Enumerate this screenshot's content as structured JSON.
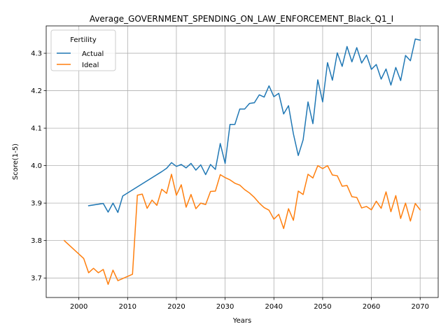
{
  "chart_data": {
    "type": "line",
    "title": "Average_GOVERNMENT_SPENDING_ON_LAW_ENFORCEMENT_Black_Q1_I",
    "xlabel": "Years",
    "ylabel": "Score(1-5)",
    "xlim": [
      1993.3,
      2073.7
    ],
    "ylim": [
      3.648,
      4.373
    ],
    "xticks": [
      2000,
      2010,
      2020,
      2030,
      2040,
      2050,
      2060,
      2070
    ],
    "yticks": [
      3.7,
      3.8,
      3.9,
      4.0,
      4.1,
      4.2,
      4.3
    ],
    "ytick_labels": [
      "3.7",
      "3.8",
      "3.9",
      "4.0",
      "4.1",
      "4.2",
      "4.3"
    ],
    "grid": true,
    "legend": {
      "title": "Fertility",
      "placement": "top-left"
    },
    "series": [
      {
        "name": "Actual",
        "color": "#1f77b4",
        "x": [
          2002,
          2005,
          2006,
          2007,
          2008,
          2009,
          2017,
          2018,
          2019,
          2020,
          2021,
          2022,
          2023,
          2024,
          2025,
          2026,
          2027,
          2028,
          2029,
          2030,
          2031,
          2032,
          2033,
          2034,
          2035,
          2036,
          2037,
          2038,
          2039,
          2040,
          2041,
          2042,
          2043,
          2044,
          2045,
          2046,
          2047,
          2048,
          2049,
          2050,
          2051,
          2052,
          2053,
          2054,
          2055,
          2056,
          2057,
          2058,
          2059,
          2060,
          2061,
          2062,
          2063,
          2064,
          2065,
          2066,
          2067,
          2068,
          2069,
          2070
        ],
        "values": [
          3.893,
          3.899,
          3.876,
          3.9,
          3.875,
          3.919,
          3.984,
          3.993,
          4.008,
          3.998,
          4.003,
          3.994,
          4.006,
          3.988,
          4.002,
          3.976,
          4.003,
          3.99,
          4.059,
          4.006,
          4.11,
          4.11,
          4.151,
          4.151,
          4.166,
          4.168,
          4.189,
          4.183,
          4.213,
          4.184,
          4.193,
          4.138,
          4.16,
          4.085,
          4.027,
          4.069,
          4.17,
          4.112,
          4.229,
          4.17,
          4.275,
          4.228,
          4.301,
          4.265,
          4.318,
          4.277,
          4.315,
          4.274,
          4.295,
          4.257,
          4.27,
          4.231,
          4.258,
          4.215,
          4.262,
          4.227,
          4.294,
          4.28,
          4.338,
          4.335
        ]
      },
      {
        "name": "Ideal",
        "color": "#ff7f0e",
        "x": [
          1997,
          2001,
          2002,
          2003,
          2004,
          2005,
          2006,
          2007,
          2008,
          2011,
          2012,
          2013,
          2014,
          2015,
          2016,
          2017,
          2018,
          2019,
          2020,
          2021,
          2022,
          2023,
          2024,
          2025,
          2026,
          2027,
          2028,
          2029,
          2030,
          2031,
          2032,
          2033,
          2034,
          2035,
          2036,
          2037,
          2038,
          2039,
          2040,
          2041,
          2042,
          2043,
          2044,
          2045,
          2046,
          2047,
          2048,
          2049,
          2050,
          2051,
          2052,
          2053,
          2054,
          2055,
          2056,
          2057,
          2058,
          2059,
          2060,
          2061,
          2062,
          2063,
          2064,
          2065,
          2066,
          2067,
          2068,
          2069,
          2070
        ],
        "values": [
          3.8,
          3.752,
          3.714,
          3.726,
          3.714,
          3.723,
          3.683,
          3.721,
          3.693,
          3.71,
          3.921,
          3.924,
          3.886,
          3.908,
          3.894,
          3.937,
          3.926,
          3.977,
          3.921,
          3.949,
          3.889,
          3.923,
          3.885,
          3.9,
          3.896,
          3.931,
          3.932,
          3.976,
          3.968,
          3.962,
          3.953,
          3.948,
          3.936,
          3.927,
          3.915,
          3.9,
          3.888,
          3.881,
          3.857,
          3.87,
          3.832,
          3.885,
          3.854,
          3.932,
          3.923,
          3.977,
          3.967,
          4.0,
          3.992,
          4.0,
          3.975,
          3.973,
          3.945,
          3.947,
          3.917,
          3.915,
          3.887,
          3.891,
          3.882,
          3.905,
          3.886,
          3.93,
          3.877,
          3.92,
          3.859,
          3.9,
          3.852,
          3.899,
          3.882
        ]
      }
    ]
  }
}
